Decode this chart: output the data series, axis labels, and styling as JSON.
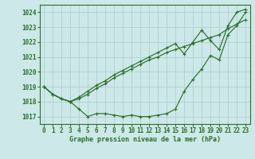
{
  "title": "Graphe pression niveau de la mer (hPa)",
  "background_color": "#cde8e8",
  "grid_color": "#b0d0d0",
  "line_color": "#2d6e2d",
  "text_color": "#2d6e2d",
  "xlim": [
    -0.5,
    23.5
  ],
  "ylim": [
    1016.5,
    1024.5
  ],
  "yticks": [
    1017,
    1018,
    1019,
    1020,
    1021,
    1022,
    1023,
    1024
  ],
  "xticks": [
    0,
    1,
    2,
    3,
    4,
    5,
    6,
    7,
    8,
    9,
    10,
    11,
    12,
    13,
    14,
    15,
    16,
    17,
    18,
    19,
    20,
    21,
    22,
    23
  ],
  "hours": [
    0,
    1,
    2,
    3,
    4,
    5,
    6,
    7,
    8,
    9,
    10,
    11,
    12,
    13,
    14,
    15,
    16,
    17,
    18,
    19,
    20,
    21,
    22,
    23
  ],
  "line1": [
    1019.0,
    1018.5,
    1018.2,
    1018.0,
    1017.5,
    1017.0,
    1017.2,
    1017.2,
    1017.1,
    1017.0,
    1017.1,
    1017.0,
    1017.0,
    1017.1,
    1017.2,
    1017.5,
    1018.7,
    1019.5,
    1020.2,
    1021.1,
    1020.8,
    1022.5,
    1023.1,
    1024.0
  ],
  "line2": [
    1019.0,
    1018.5,
    1018.2,
    1018.0,
    1018.2,
    1018.5,
    1018.9,
    1019.2,
    1019.6,
    1019.9,
    1020.2,
    1020.5,
    1020.8,
    1021.0,
    1021.3,
    1021.5,
    1021.7,
    1021.9,
    1022.1,
    1022.3,
    1022.5,
    1022.9,
    1023.2,
    1023.5
  ],
  "line3": [
    1019.0,
    1018.5,
    1018.2,
    1018.0,
    1018.3,
    1018.7,
    1019.1,
    1019.4,
    1019.8,
    1020.1,
    1020.4,
    1020.7,
    1021.0,
    1021.3,
    1021.6,
    1021.9,
    1021.2,
    1022.0,
    1022.8,
    1022.1,
    1021.5,
    1023.1,
    1024.0,
    1024.2
  ]
}
